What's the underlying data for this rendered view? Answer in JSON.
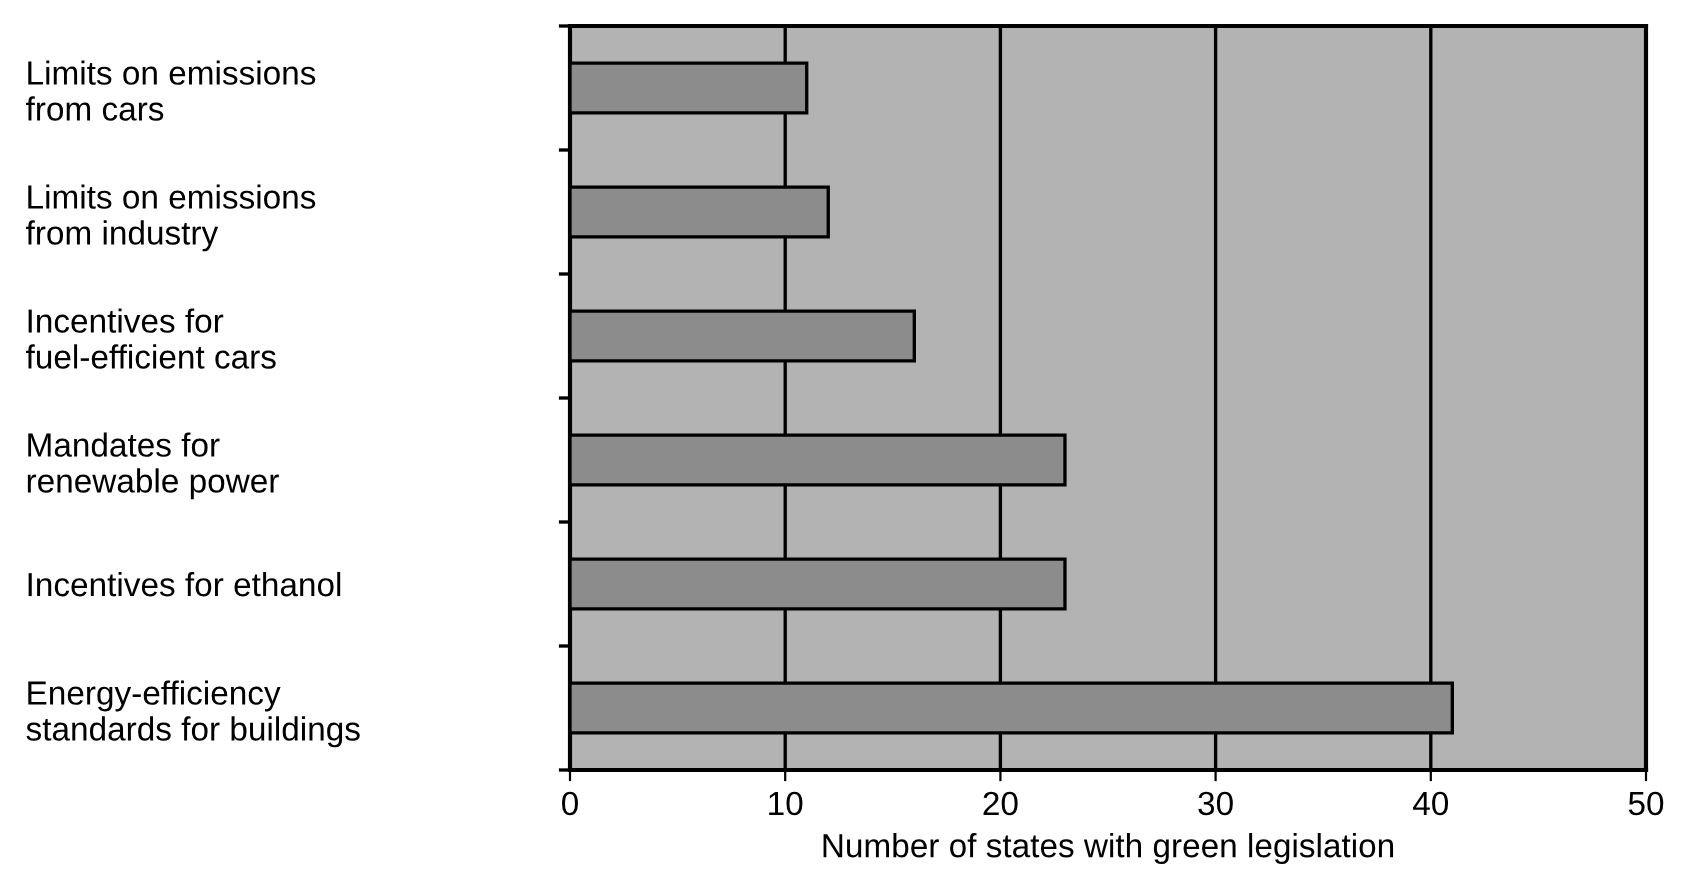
{
  "chart_data": {
    "type": "bar",
    "orientation": "horizontal",
    "categories": [
      "Limits on emissions\nfrom cars",
      "Limits on emissions\nfrom industry",
      "Incentives for\nfuel-efficient cars",
      "Mandates for\nrenewable power",
      "Incentives for ethanol",
      "Energy-efficiency\nstandards for buildings"
    ],
    "values": [
      11,
      12,
      16,
      23,
      23,
      41
    ],
    "color": "#8c8c8c",
    "xlim": [
      0,
      50
    ],
    "xticks": [
      0,
      10,
      20,
      30,
      40,
      50
    ],
    "xlabel": "Number of states with green legislation",
    "grid": "x"
  }
}
